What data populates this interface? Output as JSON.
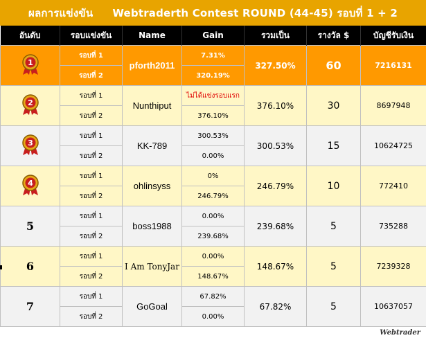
{
  "title": {
    "left": "ผลการแข่งขัน",
    "right": "Webtraderth Contest ROUND  (44-45) รอบที่ 1 + 2"
  },
  "headers": [
    "อันดับ",
    "รอบแข่งขัน",
    "Name",
    "Gain",
    "รวมเป็น",
    "รางวัล $",
    "บัญชีรับเงิน"
  ],
  "round_labels": [
    "รอบที่ 1",
    "รอบที่ 2"
  ],
  "rows": [
    {
      "rank": "1",
      "name": "pforth2011",
      "gain1": "7.31%",
      "gain2": "320.19%",
      "total": "327.50%",
      "prize": "60",
      "account": "7216131"
    },
    {
      "rank": "2",
      "name": "Nunthiput",
      "gain1": "ไม่ได้แข่งรอบแรก",
      "gain2": "376.10%",
      "total": "376.10%",
      "prize": "30",
      "account": "8697948"
    },
    {
      "rank": "3",
      "name": "KK-789",
      "gain1": "300.53%",
      "gain2": "0.00%",
      "total": "300.53%",
      "prize": "15",
      "account": "10624725"
    },
    {
      "rank": "4",
      "name": "ohlinsyss",
      "gain1": "0%",
      "gain2": "246.79%",
      "total": "246.79%",
      "prize": "10",
      "account": "772410"
    },
    {
      "rank": "5",
      "name": "boss1988",
      "gain1": "0.00%",
      "gain2": "239.68%",
      "total": "239.68%",
      "prize": "5",
      "account": "735288"
    },
    {
      "rank": "6",
      "name": "I Am TonyJar",
      "gain1": "0.00%",
      "gain2": "148.67%",
      "total": "148.67%",
      "prize": "5",
      "account": "7239328"
    },
    {
      "rank": "7",
      "name": "GoGoal",
      "gain1": "67.82%",
      "gain2": "0.00%",
      "total": "67.82%",
      "prize": "5",
      "account": "10637057"
    }
  ],
  "logo": "Webtrader",
  "colors": {
    "gold": "#ff9900",
    "title_bar": "#e8a400",
    "row_yellow": "#fff7c6",
    "red": "#e00000"
  }
}
